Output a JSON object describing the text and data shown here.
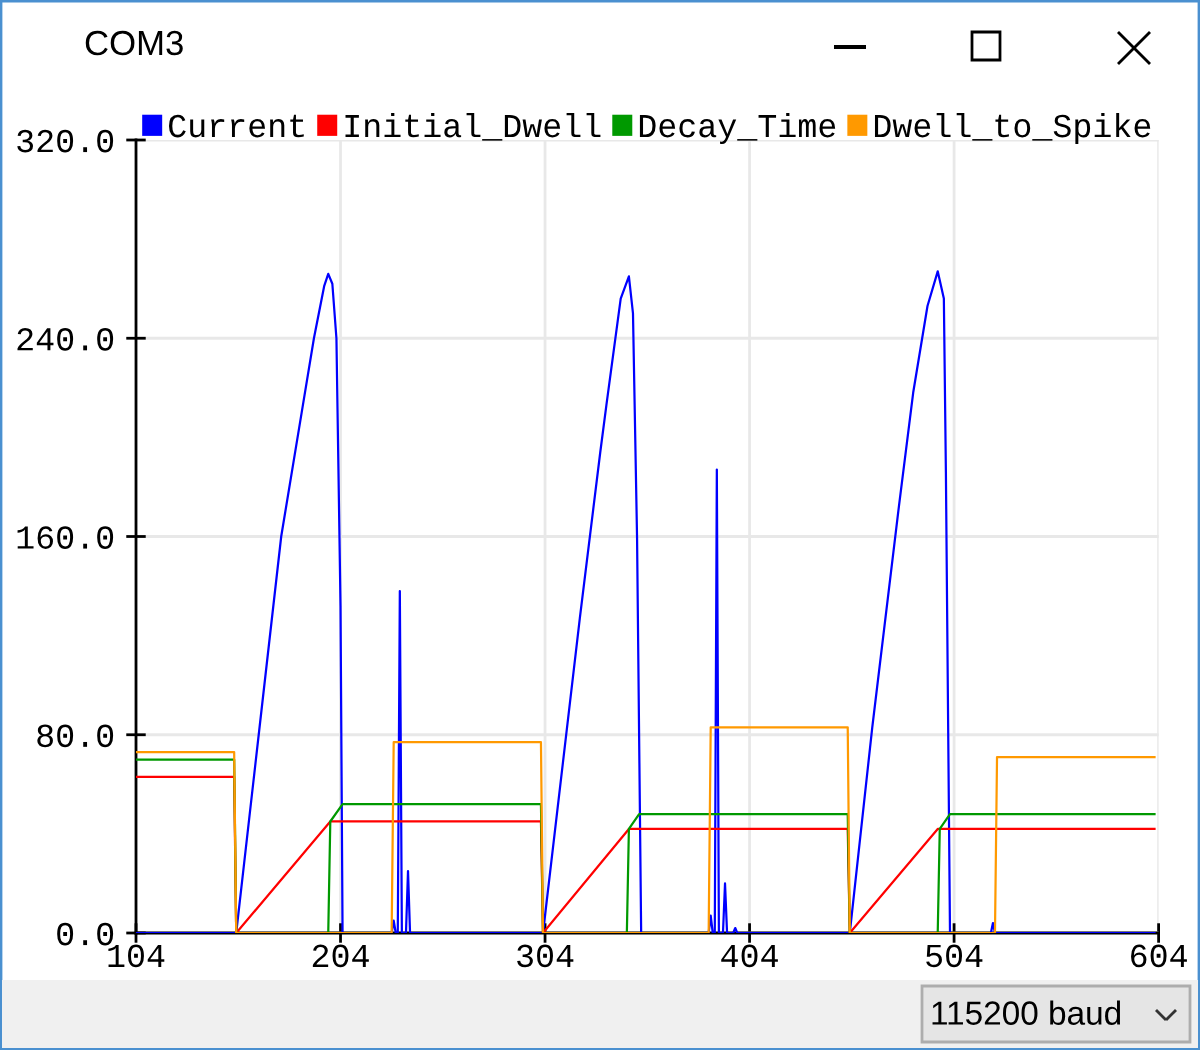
{
  "chart_data": {
    "type": "line",
    "title": "COM3",
    "annotations": [
      "115200 baud"
    ],
    "series": [
      {
        "name": "Current",
        "color": "#0000ff",
        "x": [
          104,
          153,
          164,
          175,
          185,
          191,
          196,
          198,
          200,
          202,
          204,
          205,
          229,
          230,
          231,
          232,
          233,
          234,
          236,
          237,
          238,
          303,
          321,
          331,
          334,
          341,
          345,
          347,
          349,
          351,
          384,
          385,
          386,
          387,
          388,
          389,
          391,
          392,
          393,
          396,
          397,
          398,
          453,
          464,
          477,
          484,
          491,
          496,
          499,
          500,
          502,
          522,
          523,
          524,
          602
        ],
        "values": [
          0,
          0,
          80,
          160,
          210,
          240,
          261,
          266,
          262,
          240,
          132,
          0,
          0,
          5,
          0,
          0,
          138,
          0,
          0,
          25,
          0,
          0,
          127,
          194,
          213,
          256,
          265,
          250,
          159,
          0,
          0,
          7,
          0,
          0,
          187,
          0,
          0,
          20,
          0,
          0,
          2,
          0,
          0,
          83,
          172,
          218,
          253,
          267,
          256,
          186,
          0,
          0,
          4,
          0,
          0
        ]
      },
      {
        "name": "Initial_Dwell",
        "color": "#ff0000",
        "x": [
          104,
          152,
          153,
          199,
          302,
          303,
          345,
          452,
          453,
          496,
          602
        ],
        "values": [
          63,
          63,
          0,
          45,
          45,
          0,
          42,
          42,
          0,
          42,
          42
        ]
      },
      {
        "name": "Decay_Time",
        "color": "#009900",
        "x": [
          104,
          152,
          153,
          198,
          199,
          205,
          302,
          303,
          344,
          345,
          350,
          452,
          453,
          496,
          497,
          502,
          602
        ],
        "values": [
          70,
          70,
          0,
          0,
          45,
          52,
          52,
          0,
          0,
          42,
          48,
          48,
          0,
          0,
          42,
          48,
          48
        ]
      },
      {
        "name": "Dwell_to_Spike",
        "color": "#ff9900",
        "x": [
          104,
          152,
          153,
          229,
          230,
          302,
          303,
          384,
          385,
          452,
          453,
          524,
          525,
          602
        ],
        "values": [
          73,
          73,
          0,
          0,
          77,
          77,
          0,
          0,
          83,
          83,
          0,
          0,
          71,
          71
        ]
      }
    ],
    "xlim": [
      104,
      604
    ],
    "xticks": [
      104,
      204,
      304,
      404,
      504,
      604
    ],
    "ylim": [
      0,
      320
    ],
    "yticks": [
      {
        "value": 0,
        "label": "0.0"
      },
      {
        "value": 80,
        "label": "80.0"
      },
      {
        "value": 160,
        "label": "160.0"
      },
      {
        "value": 240,
        "label": "240.0"
      },
      {
        "value": 320,
        "label": "320.0"
      }
    ],
    "grid": true,
    "legend": "top"
  }
}
